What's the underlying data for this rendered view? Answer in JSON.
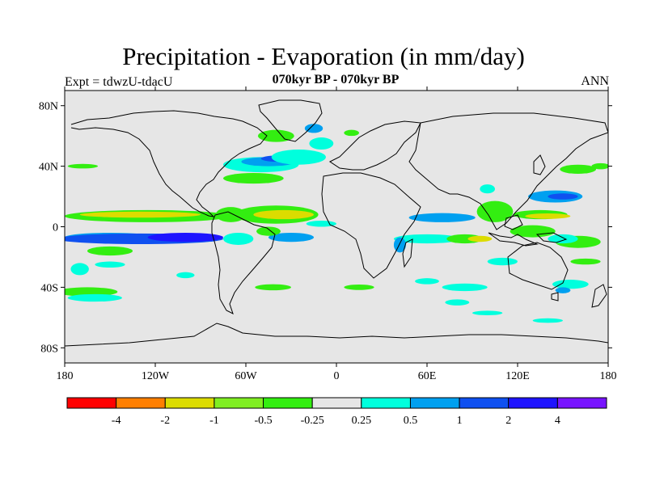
{
  "header": {
    "title": "Precipitation - Evaporation (in mm/day)",
    "subtitle": "070kyr BP - 070kyr BP",
    "expt": "Expt = tdwzU-tdacU",
    "season": "ANN"
  },
  "map": {
    "background_color": "#e6e6e6",
    "lon_range": [
      -180,
      180
    ],
    "lat_range": [
      -90,
      90
    ],
    "y_ticks": [
      {
        "lat": 80,
        "label": "80N"
      },
      {
        "lat": 40,
        "label": "40N"
      },
      {
        "lat": 0,
        "label": "0"
      },
      {
        "lat": -40,
        "label": "40S"
      },
      {
        "lat": -80,
        "label": "80S"
      }
    ],
    "x_ticks": [
      {
        "lon": -180,
        "label": "180"
      },
      {
        "lon": -120,
        "label": "120W"
      },
      {
        "lon": -60,
        "label": "60W"
      },
      {
        "lon": 0,
        "label": "0"
      },
      {
        "lon": 60,
        "label": "60E"
      },
      {
        "lon": 120,
        "label": "120E"
      },
      {
        "lon": 180,
        "label": "180"
      }
    ],
    "blobs": [
      {
        "lon": -125,
        "lat": 7,
        "rlon": 55,
        "rlat": 4,
        "color": "#33ee11"
      },
      {
        "lon": -130,
        "lat": 8,
        "rlon": 40,
        "rlat": 2,
        "color": "#dcdc00"
      },
      {
        "lon": -150,
        "lat": -7,
        "rlon": 30,
        "rlat": 3,
        "color": "#00a0f0"
      },
      {
        "lon": -130,
        "lat": -8,
        "rlon": 55,
        "rlat": 3.5,
        "color": "#0f50f0"
      },
      {
        "lon": -100,
        "lat": -7,
        "rlon": 25,
        "rlat": 3,
        "color": "#1e14ff"
      },
      {
        "lon": -150,
        "lat": -16,
        "rlon": 15,
        "rlat": 3,
        "color": "#33ee11"
      },
      {
        "lon": -150,
        "lat": -25,
        "rlon": 10,
        "rlat": 2,
        "color": "#00ffdd"
      },
      {
        "lon": -170,
        "lat": -28,
        "rlon": 6,
        "rlat": 4,
        "color": "#00ffdd"
      },
      {
        "lon": -165,
        "lat": -43,
        "rlon": 20,
        "rlat": 3,
        "color": "#33ee11"
      },
      {
        "lon": -160,
        "lat": -47,
        "rlon": 18,
        "rlat": 2.5,
        "color": "#00ffdd"
      },
      {
        "lon": -50,
        "lat": 41,
        "rlon": 25,
        "rlat": 5,
        "color": "#00ffdd"
      },
      {
        "lon": -45,
        "lat": 43,
        "rlon": 18,
        "rlat": 3,
        "color": "#00a0f0"
      },
      {
        "lon": -40,
        "lat": 45,
        "rlon": 10,
        "rlat": 2,
        "color": "#0f50f0"
      },
      {
        "lon": -55,
        "lat": 32,
        "rlon": 20,
        "rlat": 3.5,
        "color": "#33ee11"
      },
      {
        "lon": -25,
        "lat": 46,
        "rlon": 18,
        "rlat": 5,
        "color": "#00ffdd"
      },
      {
        "lon": -10,
        "lat": 55,
        "rlon": 8,
        "rlat": 4,
        "color": "#00ffdd"
      },
      {
        "lon": -40,
        "lat": 60,
        "rlon": 12,
        "rlat": 4,
        "color": "#33ee11"
      },
      {
        "lon": -40,
        "lat": 8,
        "rlon": 28,
        "rlat": 6,
        "color": "#33ee11"
      },
      {
        "lon": -35,
        "lat": 8,
        "rlon": 20,
        "rlat": 3,
        "color": "#dcdc00"
      },
      {
        "lon": -30,
        "lat": -7,
        "rlon": 15,
        "rlat": 3,
        "color": "#00a0f0"
      },
      {
        "lon": -10,
        "lat": 2,
        "rlon": 10,
        "rlat": 2,
        "color": "#00ffdd"
      },
      {
        "lon": -70,
        "lat": 8,
        "rlon": 10,
        "rlat": 5,
        "color": "#33ee11"
      },
      {
        "lon": -65,
        "lat": -8,
        "rlon": 10,
        "rlat": 4,
        "color": "#00ffdd"
      },
      {
        "lon": -45,
        "lat": -3,
        "rlon": 8,
        "rlat": 3,
        "color": "#33ee11"
      },
      {
        "lon": -42,
        "lat": -40,
        "rlon": 12,
        "rlat": 2,
        "color": "#33ee11"
      },
      {
        "lon": 15,
        "lat": -40,
        "rlon": 10,
        "rlat": 1.8,
        "color": "#33ee11"
      },
      {
        "lon": 70,
        "lat": 6,
        "rlon": 22,
        "rlat": 3,
        "color": "#00a0f0"
      },
      {
        "lon": 60,
        "lat": -8,
        "rlon": 22,
        "rlat": 3,
        "color": "#00ffdd"
      },
      {
        "lon": 85,
        "lat": -8,
        "rlon": 12,
        "rlat": 3,
        "color": "#33ee11"
      },
      {
        "lon": 95,
        "lat": -8,
        "rlon": 8,
        "rlat": 2,
        "color": "#dcdc00"
      },
      {
        "lon": 105,
        "lat": 10,
        "rlon": 12,
        "rlat": 7,
        "color": "#33ee11"
      },
      {
        "lon": 135,
        "lat": 8,
        "rlon": 18,
        "rlat": 3,
        "color": "#33ee11"
      },
      {
        "lon": 140,
        "lat": 7,
        "rlon": 15,
        "rlat": 1.8,
        "color": "#dcdc00"
      },
      {
        "lon": 145,
        "lat": 20,
        "rlon": 18,
        "rlat": 4,
        "color": "#00a0f0"
      },
      {
        "lon": 150,
        "lat": 20,
        "rlon": 10,
        "rlat": 2,
        "color": "#0f50f0"
      },
      {
        "lon": 130,
        "lat": -3,
        "rlon": 15,
        "rlat": 4,
        "color": "#33ee11"
      },
      {
        "lon": 160,
        "lat": -10,
        "rlon": 15,
        "rlat": 4,
        "color": "#33ee11"
      },
      {
        "lon": 150,
        "lat": -8,
        "rlon": 10,
        "rlat": 3,
        "color": "#00ffdd"
      },
      {
        "lon": 110,
        "lat": -23,
        "rlon": 10,
        "rlat": 2.5,
        "color": "#00ffdd"
      },
      {
        "lon": 165,
        "lat": -23,
        "rlon": 10,
        "rlat": 2,
        "color": "#33ee11"
      },
      {
        "lon": 160,
        "lat": 38,
        "rlon": 12,
        "rlat": 3,
        "color": "#33ee11"
      },
      {
        "lon": 175,
        "lat": 40,
        "rlon": 6,
        "rlat": 2,
        "color": "#33ee11"
      },
      {
        "lon": 155,
        "lat": -38,
        "rlon": 12,
        "rlat": 3,
        "color": "#00ffdd"
      },
      {
        "lon": 150,
        "lat": -42,
        "rlon": 5,
        "rlat": 2,
        "color": "#00a0f0"
      },
      {
        "lon": 85,
        "lat": -40,
        "rlon": 15,
        "rlat": 2.5,
        "color": "#00ffdd"
      },
      {
        "lon": 80,
        "lat": -50,
        "rlon": 8,
        "rlat": 2,
        "color": "#00ffdd"
      },
      {
        "lon": 100,
        "lat": -57,
        "rlon": 10,
        "rlat": 1.5,
        "color": "#00ffdd"
      },
      {
        "lon": 60,
        "lat": -36,
        "rlon": 8,
        "rlat": 2,
        "color": "#00ffdd"
      },
      {
        "lon": 140,
        "lat": -62,
        "rlon": 10,
        "rlat": 1.5,
        "color": "#00ffdd"
      },
      {
        "lon": -100,
        "lat": -32,
        "rlon": 6,
        "rlat": 2,
        "color": "#00ffdd"
      },
      {
        "lon": -168,
        "lat": 40,
        "rlon": 10,
        "rlat": 1.5,
        "color": "#33ee11"
      },
      {
        "lon": 42,
        "lat": -12,
        "rlon": 4,
        "rlat": 5,
        "color": "#00a0f0"
      },
      {
        "lon": -15,
        "lat": 65,
        "rlon": 6,
        "rlat": 3,
        "color": "#00a0f0"
      },
      {
        "lon": 10,
        "lat": 62,
        "rlon": 5,
        "rlat": 2,
        "color": "#33ee11"
      },
      {
        "lon": 100,
        "lat": 25,
        "rlon": 5,
        "rlat": 3,
        "color": "#00ffdd"
      }
    ]
  },
  "colorbar": {
    "colors": [
      "#ff0000",
      "#ff7f00",
      "#dcdc00",
      "#80ee22",
      "#33ee11",
      "#e6e6e6",
      "#00ffdd",
      "#00a0f0",
      "#0f50f0",
      "#1e14ff",
      "#7814ff"
    ],
    "labels": [
      "-4",
      "-2",
      "-1",
      "-0.5",
      "-0.25",
      "0.25",
      "0.5",
      "1",
      "2",
      "4"
    ]
  }
}
